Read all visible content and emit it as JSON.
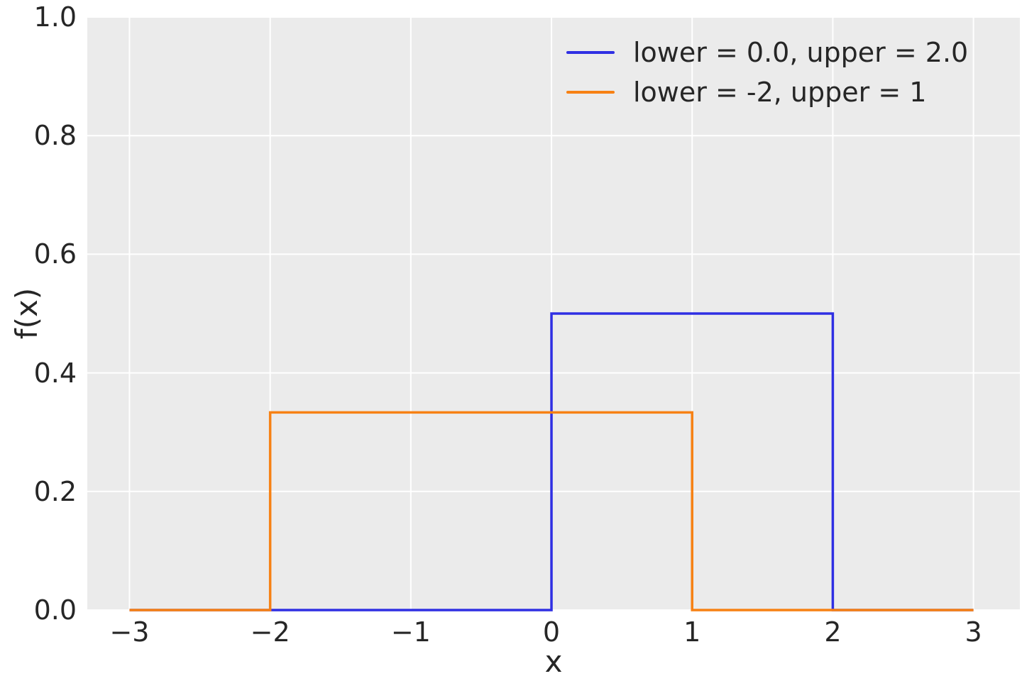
{
  "figure": {
    "background_color": "#ffffff",
    "plot_background_color": "#ebebeb",
    "grid_color": "#ffffff",
    "text_color": "#262626"
  },
  "chart_data": {
    "type": "line",
    "subtype": "step-pdf",
    "title": "",
    "xlabel": "x",
    "ylabel": "f(x)",
    "xlim": [
      -3.3,
      3.33
    ],
    "ylim": [
      0,
      1.0
    ],
    "grid": true,
    "legend_position": "upper right",
    "legend_frame": false,
    "x_tick_values": [
      -3,
      -2,
      -1,
      0,
      1,
      2,
      3
    ],
    "x_tick_labels": [
      "−3",
      "−2",
      "−1",
      "0",
      "1",
      "2",
      "3"
    ],
    "y_tick_values": [
      0.0,
      0.2,
      0.4,
      0.6,
      0.8,
      1.0
    ],
    "y_tick_labels": [
      "0.0",
      "0.2",
      "0.4",
      "0.6",
      "0.8",
      "1.0"
    ],
    "series": [
      {
        "name": "lower = 0.0, upper = 2.0",
        "color": "#2f2fe3",
        "line_width": 3.5,
        "distribution": {
          "lower": 0.0,
          "upper": 2.0,
          "density": 0.5
        },
        "x": [
          -3,
          0,
          0,
          2,
          2,
          3
        ],
        "y": [
          0,
          0,
          0.5,
          0.5,
          0,
          0
        ]
      },
      {
        "name": "lower = -2, upper = 1",
        "color": "#f78114",
        "line_width": 3.5,
        "distribution": {
          "lower": -2,
          "upper": 1,
          "density": 0.3333
        },
        "x": [
          -3,
          -2,
          -2,
          1,
          1,
          3
        ],
        "y": [
          0,
          0,
          0.3333,
          0.3333,
          0,
          0
        ]
      }
    ]
  }
}
